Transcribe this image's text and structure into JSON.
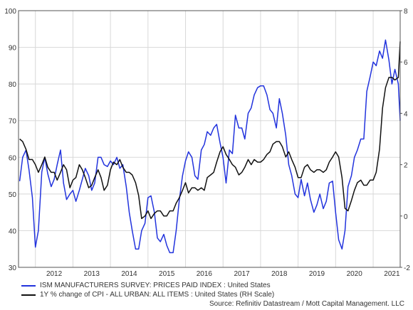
{
  "chart_data": {
    "type": "line",
    "title": "",
    "source": "Source: Refinitiv Datastream / Mott Capital Management. LLC",
    "grid": true,
    "legend_placement": "bottom-left",
    "x_tick_labels": [
      "2012",
      "2013",
      "2014",
      "2015",
      "2016",
      "2017",
      "2018",
      "2019",
      "2020",
      "2021"
    ],
    "xlim": [
      2011.55,
      2021.72
    ],
    "y_left": {
      "ticks": [
        "30",
        "40",
        "50",
        "60",
        "70",
        "80",
        "90",
        "100"
      ],
      "ylim": [
        30,
        100
      ]
    },
    "y_right": {
      "ticks": [
        "-2",
        "0",
        "2",
        "4",
        "6",
        "8"
      ],
      "ylim": [
        -2,
        8
      ]
    },
    "series": [
      {
        "name": "ISM MANUFACTURERS SURVEY: PRICES PAID INDEX : United States",
        "axis": "left",
        "color": "#2233dd",
        "points": [
          [
            2011.58,
            53.5
          ],
          [
            2011.66,
            60
          ],
          [
            2011.75,
            62
          ],
          [
            2011.83,
            56.5
          ],
          [
            2011.92,
            49
          ],
          [
            2012.0,
            35.5
          ],
          [
            2012.08,
            40
          ],
          [
            2012.17,
            56
          ],
          [
            2012.25,
            60
          ],
          [
            2012.33,
            55.5
          ],
          [
            2012.42,
            52
          ],
          [
            2012.5,
            54
          ],
          [
            2012.58,
            58
          ],
          [
            2012.67,
            62
          ],
          [
            2012.75,
            53
          ],
          [
            2012.83,
            48.5
          ],
          [
            2012.92,
            50
          ],
          [
            2013.0,
            51
          ],
          [
            2013.08,
            48
          ],
          [
            2013.17,
            51
          ],
          [
            2013.25,
            54
          ],
          [
            2013.33,
            57
          ],
          [
            2013.42,
            55
          ],
          [
            2013.5,
            51
          ],
          [
            2013.58,
            53
          ],
          [
            2013.67,
            60
          ],
          [
            2013.75,
            60
          ],
          [
            2013.83,
            58
          ],
          [
            2013.92,
            57.5
          ],
          [
            2014.0,
            59
          ],
          [
            2014.08,
            58
          ],
          [
            2014.17,
            60
          ],
          [
            2014.25,
            57
          ],
          [
            2014.33,
            58
          ],
          [
            2014.42,
            52
          ],
          [
            2014.5,
            45
          ],
          [
            2014.58,
            40
          ],
          [
            2014.67,
            35
          ],
          [
            2014.75,
            35
          ],
          [
            2014.83,
            40
          ],
          [
            2014.92,
            42
          ],
          [
            2015.0,
            49
          ],
          [
            2015.08,
            49.5
          ],
          [
            2015.17,
            45
          ],
          [
            2015.25,
            38
          ],
          [
            2015.33,
            37
          ],
          [
            2015.42,
            39
          ],
          [
            2015.5,
            36
          ],
          [
            2015.58,
            34
          ],
          [
            2015.67,
            34
          ],
          [
            2015.75,
            40
          ],
          [
            2015.83,
            48
          ],
          [
            2015.92,
            55
          ],
          [
            2016.0,
            59
          ],
          [
            2016.08,
            61.5
          ],
          [
            2016.17,
            60
          ],
          [
            2016.25,
            55
          ],
          [
            2016.33,
            54
          ],
          [
            2016.42,
            62
          ],
          [
            2016.5,
            63.5
          ],
          [
            2016.58,
            67
          ],
          [
            2016.67,
            66
          ],
          [
            2016.75,
            68
          ],
          [
            2016.83,
            69
          ],
          [
            2016.92,
            64
          ],
          [
            2017.0,
            60
          ],
          [
            2017.08,
            53
          ],
          [
            2017.17,
            62
          ],
          [
            2017.25,
            61
          ],
          [
            2017.33,
            71.5
          ],
          [
            2017.42,
            68
          ],
          [
            2017.5,
            68
          ],
          [
            2017.58,
            65
          ],
          [
            2017.67,
            72
          ],
          [
            2017.75,
            73.5
          ],
          [
            2017.83,
            77
          ],
          [
            2017.92,
            79
          ],
          [
            2018.0,
            79.5
          ],
          [
            2018.08,
            79.5
          ],
          [
            2018.17,
            77
          ],
          [
            2018.25,
            73
          ],
          [
            2018.33,
            72
          ],
          [
            2018.42,
            68
          ],
          [
            2018.5,
            76
          ],
          [
            2018.58,
            72
          ],
          [
            2018.67,
            66
          ],
          [
            2018.75,
            58
          ],
          [
            2018.83,
            55
          ],
          [
            2018.92,
            50
          ],
          [
            2019.0,
            49
          ],
          [
            2019.08,
            54
          ],
          [
            2019.17,
            49.5
          ],
          [
            2019.25,
            53
          ],
          [
            2019.33,
            48.5
          ],
          [
            2019.42,
            45
          ],
          [
            2019.5,
            47
          ],
          [
            2019.58,
            50
          ],
          [
            2019.67,
            46
          ],
          [
            2019.75,
            48
          ],
          [
            2019.83,
            53
          ],
          [
            2019.92,
            53.5
          ],
          [
            2020.0,
            45
          ],
          [
            2020.08,
            37.5
          ],
          [
            2020.17,
            35
          ],
          [
            2020.25,
            40
          ],
          [
            2020.33,
            52
          ],
          [
            2020.42,
            55
          ],
          [
            2020.5,
            60
          ],
          [
            2020.58,
            62
          ],
          [
            2020.67,
            65
          ],
          [
            2020.75,
            65
          ],
          [
            2020.83,
            78
          ],
          [
            2020.92,
            82
          ],
          [
            2021.0,
            86
          ],
          [
            2021.08,
            85
          ],
          [
            2021.17,
            89
          ],
          [
            2021.25,
            87
          ],
          [
            2021.33,
            92
          ],
          [
            2021.42,
            86.5
          ],
          [
            2021.5,
            80
          ],
          [
            2021.58,
            84
          ],
          [
            2021.67,
            80
          ],
          [
            2021.72,
            70
          ]
        ]
      },
      {
        "name": "1Y % change of CPI - ALL URBAN: ALL ITEMS : United States (RH Scale)",
        "axis": "right",
        "color": "#111111",
        "points": [
          [
            2011.58,
            3.0
          ],
          [
            2011.66,
            2.9
          ],
          [
            2011.75,
            2.6
          ],
          [
            2011.83,
            2.2
          ],
          [
            2011.92,
            2.2
          ],
          [
            2012.0,
            2.0
          ],
          [
            2012.08,
            1.7
          ],
          [
            2012.17,
            2.0
          ],
          [
            2012.25,
            2.3
          ],
          [
            2012.33,
            1.9
          ],
          [
            2012.42,
            1.7
          ],
          [
            2012.5,
            1.7
          ],
          [
            2012.58,
            1.4
          ],
          [
            2012.67,
            1.7
          ],
          [
            2012.75,
            2.0
          ],
          [
            2012.83,
            1.8
          ],
          [
            2012.92,
            1.1
          ],
          [
            2013.0,
            1.4
          ],
          [
            2013.08,
            1.5
          ],
          [
            2013.17,
            2.0
          ],
          [
            2013.25,
            1.8
          ],
          [
            2013.33,
            1.5
          ],
          [
            2013.42,
            1.1
          ],
          [
            2013.5,
            1.2
          ],
          [
            2013.58,
            1.5
          ],
          [
            2013.67,
            1.8
          ],
          [
            2013.75,
            1.5
          ],
          [
            2013.83,
            1.0
          ],
          [
            2013.92,
            1.2
          ],
          [
            2014.0,
            1.8
          ],
          [
            2014.08,
            2.1
          ],
          [
            2014.17,
            2.0
          ],
          [
            2014.25,
            2.2
          ],
          [
            2014.33,
            1.9
          ],
          [
            2014.42,
            1.7
          ],
          [
            2014.5,
            1.7
          ],
          [
            2014.58,
            1.6
          ],
          [
            2014.67,
            1.3
          ],
          [
            2014.75,
            0.8
          ],
          [
            2014.83,
            -0.1
          ],
          [
            2014.92,
            0.0
          ],
          [
            2015.0,
            0.2
          ],
          [
            2015.08,
            -0.1
          ],
          [
            2015.17,
            0.1
          ],
          [
            2015.25,
            0.2
          ],
          [
            2015.33,
            0.2
          ],
          [
            2015.42,
            0.0
          ],
          [
            2015.5,
            0.0
          ],
          [
            2015.58,
            0.2
          ],
          [
            2015.67,
            0.2
          ],
          [
            2015.75,
            0.5
          ],
          [
            2015.83,
            0.7
          ],
          [
            2015.92,
            1.0
          ],
          [
            2016.0,
            1.3
          ],
          [
            2016.08,
            0.9
          ],
          [
            2016.17,
            1.1
          ],
          [
            2016.25,
            1.1
          ],
          [
            2016.33,
            1.0
          ],
          [
            2016.42,
            1.1
          ],
          [
            2016.5,
            1.0
          ],
          [
            2016.58,
            1.5
          ],
          [
            2016.67,
            1.6
          ],
          [
            2016.75,
            1.7
          ],
          [
            2016.83,
            2.1
          ],
          [
            2016.92,
            2.5
          ],
          [
            2017.0,
            2.7
          ],
          [
            2017.08,
            2.4
          ],
          [
            2017.17,
            2.2
          ],
          [
            2017.25,
            2.0
          ],
          [
            2017.33,
            1.9
          ],
          [
            2017.42,
            1.6
          ],
          [
            2017.5,
            1.7
          ],
          [
            2017.58,
            1.9
          ],
          [
            2017.67,
            2.2
          ],
          [
            2017.75,
            2.0
          ],
          [
            2017.83,
            2.2
          ],
          [
            2017.92,
            2.1
          ],
          [
            2018.0,
            2.1
          ],
          [
            2018.08,
            2.2
          ],
          [
            2018.17,
            2.4
          ],
          [
            2018.25,
            2.5
          ],
          [
            2018.33,
            2.8
          ],
          [
            2018.42,
            2.9
          ],
          [
            2018.5,
            2.9
          ],
          [
            2018.58,
            2.7
          ],
          [
            2018.67,
            2.3
          ],
          [
            2018.75,
            2.5
          ],
          [
            2018.83,
            2.2
          ],
          [
            2018.92,
            1.9
          ],
          [
            2019.0,
            1.5
          ],
          [
            2019.08,
            1.5
          ],
          [
            2019.17,
            1.9
          ],
          [
            2019.25,
            2.0
          ],
          [
            2019.33,
            1.8
          ],
          [
            2019.42,
            1.7
          ],
          [
            2019.5,
            1.8
          ],
          [
            2019.58,
            1.8
          ],
          [
            2019.67,
            1.7
          ],
          [
            2019.75,
            1.8
          ],
          [
            2019.83,
            2.1
          ],
          [
            2019.92,
            2.3
          ],
          [
            2020.0,
            2.5
          ],
          [
            2020.08,
            2.3
          ],
          [
            2020.17,
            1.5
          ],
          [
            2020.25,
            0.3
          ],
          [
            2020.33,
            0.2
          ],
          [
            2020.42,
            0.6
          ],
          [
            2020.5,
            1.0
          ],
          [
            2020.58,
            1.3
          ],
          [
            2020.67,
            1.4
          ],
          [
            2020.75,
            1.2
          ],
          [
            2020.83,
            1.2
          ],
          [
            2020.92,
            1.4
          ],
          [
            2021.0,
            1.4
          ],
          [
            2021.08,
            1.7
          ],
          [
            2021.17,
            2.6
          ],
          [
            2021.25,
            4.2
          ],
          [
            2021.33,
            5.0
          ],
          [
            2021.42,
            5.4
          ],
          [
            2021.5,
            5.4
          ],
          [
            2021.58,
            5.3
          ],
          [
            2021.67,
            5.4
          ],
          [
            2021.72,
            6.8
          ]
        ]
      }
    ]
  }
}
